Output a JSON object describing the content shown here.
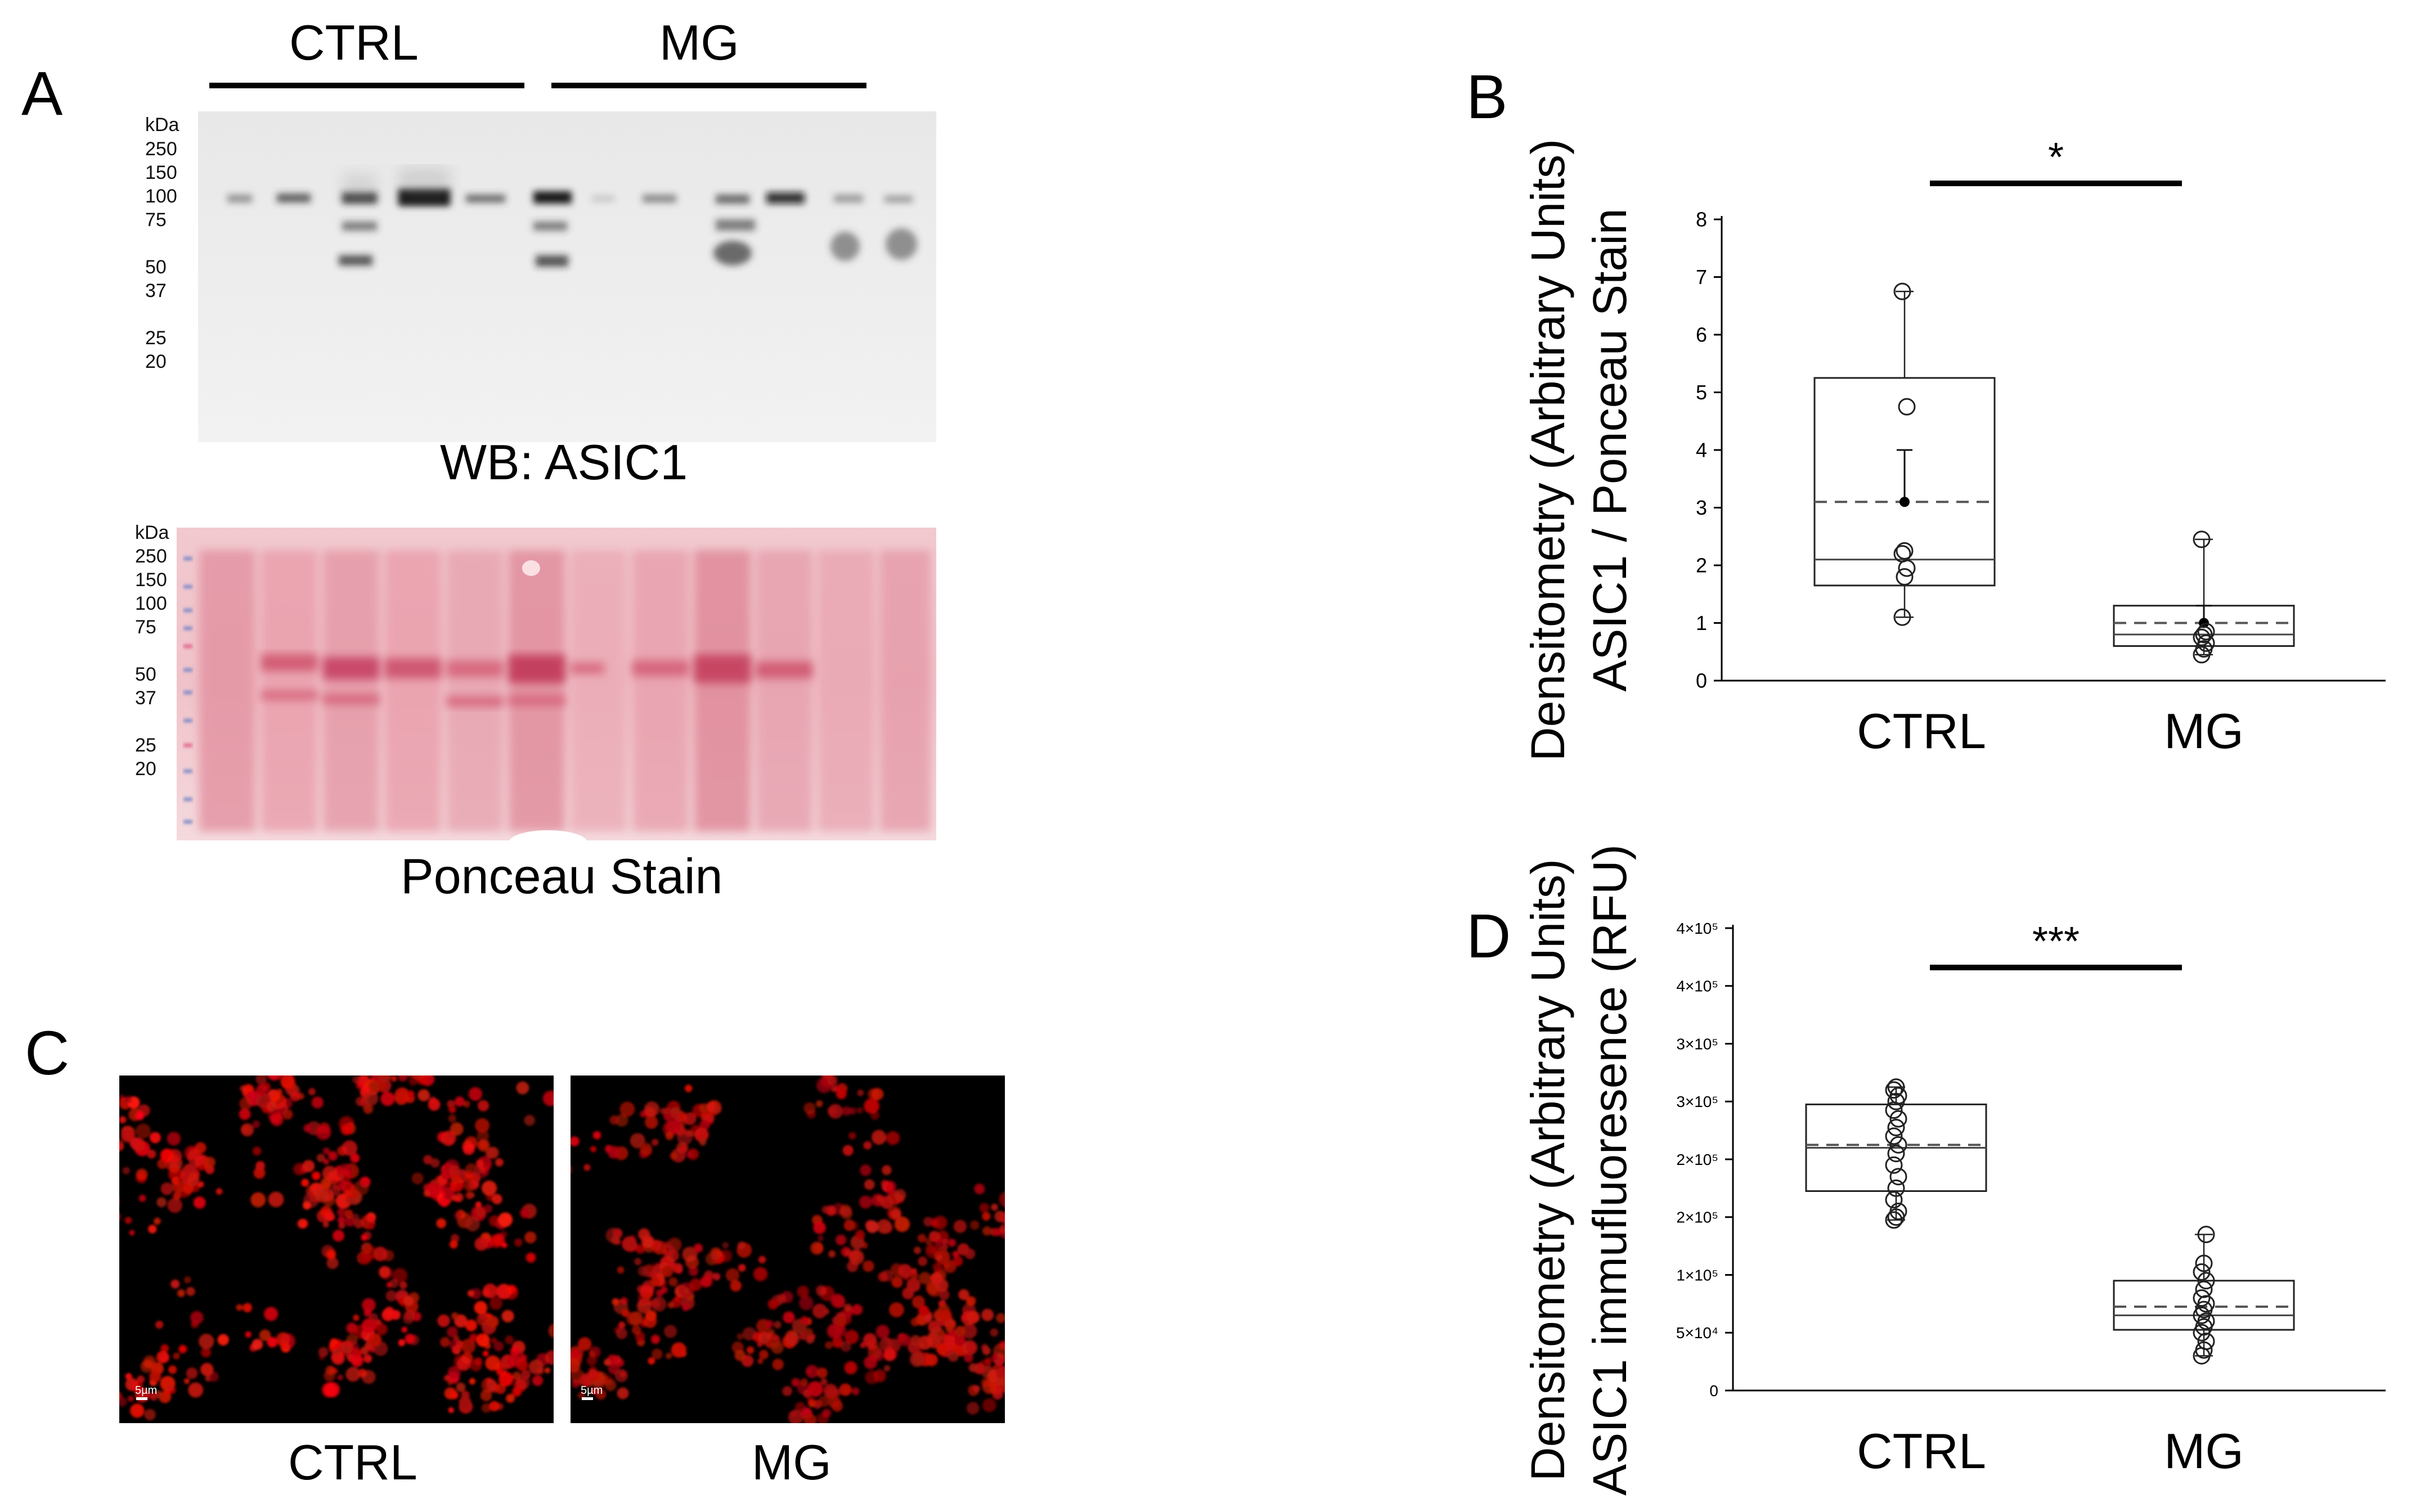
{
  "panels": {
    "A": {
      "letter": "A",
      "group_labels": [
        "CTRL",
        "MG"
      ],
      "blot_caption": "WB: ASIC1",
      "ponceau_caption": "Ponceau Stain",
      "kda_unit": "kDa",
      "markers_wb": [
        "250",
        "150",
        "100",
        "75",
        "50",
        "37",
        "25",
        "20"
      ],
      "markers_ponceau": [
        "250",
        "150",
        "100",
        "75",
        "50",
        "37",
        "25",
        "20"
      ]
    },
    "C": {
      "letter": "C",
      "captions": [
        "CTRL",
        "MG"
      ],
      "scale_bar": "5µm"
    }
  },
  "chart_data": [
    {
      "panel": "B",
      "type": "box",
      "ylabel_lines": [
        "Densitometry (Arbitrary Units)",
        "ASIC1 / Ponceau Stain"
      ],
      "categories": [
        "CTRL",
        "MG"
      ],
      "ylim": [
        0,
        8
      ],
      "yticks": [
        "0",
        "1",
        "2",
        "3",
        "4",
        "5",
        "6",
        "7",
        "8"
      ],
      "significance": "*",
      "series": [
        {
          "q1": 1.65,
          "median": 2.1,
          "q3": 5.25,
          "mean": 3.1,
          "whisker_low": 1.1,
          "whisker_high": 6.75,
          "sem_high": 4.0,
          "points": [
            1.1,
            1.8,
            1.95,
            2.2,
            2.25,
            4.75,
            6.75
          ]
        },
        {
          "q1": 0.6,
          "median": 0.8,
          "q3": 1.3,
          "mean": 1.0,
          "whisker_low": 0.45,
          "whisker_high": 2.45,
          "sem_high": 1.3,
          "points": [
            0.45,
            0.55,
            0.65,
            0.75,
            0.8,
            0.85,
            2.45
          ]
        }
      ]
    },
    {
      "panel": "D",
      "type": "box",
      "ylabel_lines": [
        "Densitometry (Arbitrary Units)",
        "ASIC1 immufluoresence (RFU)"
      ],
      "categories": [
        "CTRL",
        "MG"
      ],
      "ylim": [
        0,
        8
      ],
      "yticks": [
        "0",
        "5×10⁴",
        "1×10⁵",
        "2×10⁵",
        "2×10⁵",
        "3×10⁵",
        "3×10⁵",
        "4×10⁵",
        "4×10⁵"
      ],
      "significance": "***",
      "series": [
        {
          "q1": 3.45,
          "median": 4.2,
          "q3": 4.95,
          "mean": 4.25,
          "whisker_low": 2.95,
          "whisker_high": 5.25,
          "points": [
            2.95,
            3.0,
            3.1,
            3.3,
            3.5,
            3.7,
            3.9,
            4.1,
            4.25,
            4.4,
            4.55,
            4.7,
            4.85,
            5.0,
            5.1,
            5.2,
            5.25
          ]
        },
        {
          "q1": 1.05,
          "median": 1.3,
          "q3": 1.9,
          "mean": 1.45,
          "whisker_low": 0.6,
          "whisker_high": 2.7,
          "points": [
            0.6,
            0.7,
            0.85,
            1.0,
            1.1,
            1.2,
            1.3,
            1.4,
            1.5,
            1.6,
            1.75,
            1.9,
            2.05,
            2.2,
            2.7
          ]
        }
      ]
    }
  ]
}
